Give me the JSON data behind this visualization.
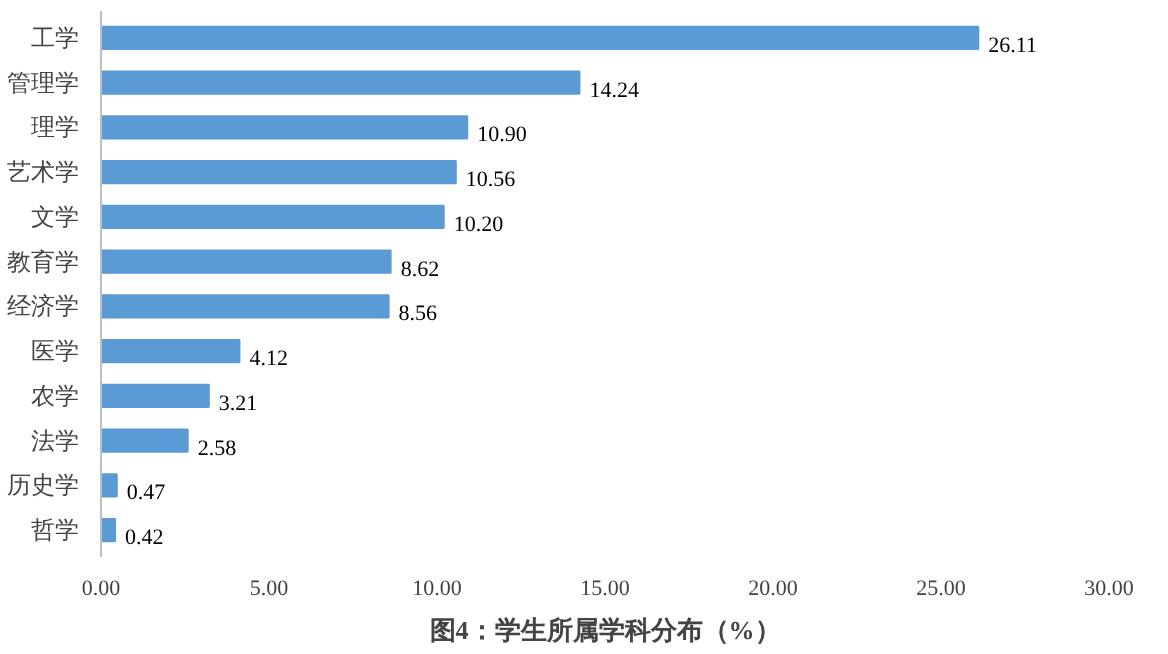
{
  "chart_data": {
    "type": "bar",
    "orientation": "horizontal",
    "title": "图4：学生所属学科分布（%）",
    "categories": [
      "工学",
      "管理学",
      "理学",
      "艺术学",
      "文学",
      "教育学",
      "经济学",
      "医学",
      "农学",
      "法学",
      "历史学",
      "哲学"
    ],
    "values": [
      26.11,
      14.24,
      10.9,
      10.56,
      10.2,
      8.62,
      8.56,
      4.12,
      3.21,
      2.58,
      0.47,
      0.42
    ],
    "value_labels": [
      "26.11",
      "14.24",
      "10.90",
      "10.56",
      "10.20",
      "8.62",
      "8.56",
      "4.12",
      "3.21",
      "2.58",
      "0.47",
      "0.42"
    ],
    "color": "#5b9bd5",
    "xlim": [
      0,
      30
    ],
    "xticks": [
      {
        "value": 0,
        "label": "0.00"
      },
      {
        "value": 5,
        "label": "5.00"
      },
      {
        "value": 10,
        "label": "10.00"
      },
      {
        "value": 15,
        "label": "15.00"
      },
      {
        "value": 20,
        "label": "20.00"
      },
      {
        "value": 25,
        "label": "25.00"
      },
      {
        "value": 30,
        "label": "30.00"
      }
    ],
    "grid": false
  }
}
